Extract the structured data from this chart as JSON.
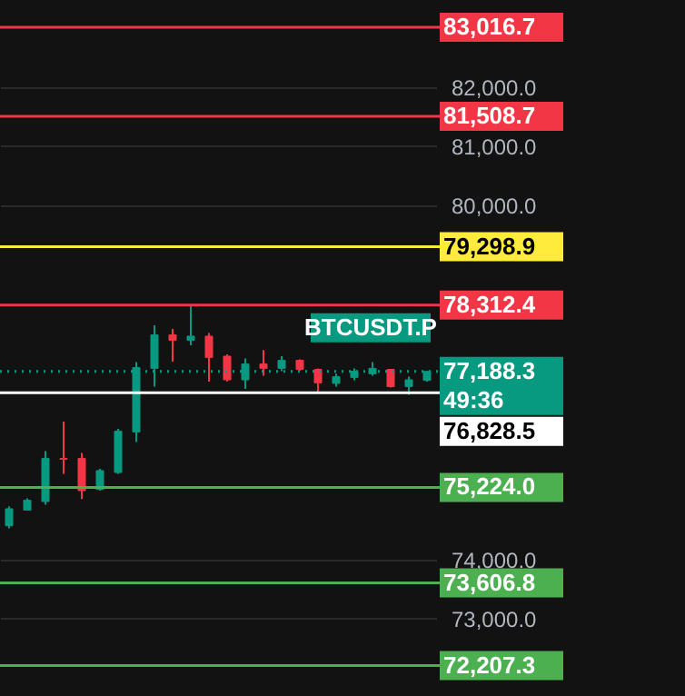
{
  "chart_data": {
    "type": "candlestick",
    "categories": [
      null,
      null,
      null,
      null,
      null,
      null,
      null,
      null,
      null,
      null,
      null,
      null,
      null,
      null,
      null,
      null,
      null,
      null,
      null,
      null,
      null,
      null,
      null,
      null
    ],
    "ohlc": [
      [
        74575,
        74902,
        74532,
        74862
      ],
      [
        74840,
        75037,
        74831,
        75006
      ],
      [
        74985,
        75837,
        74932,
        75714
      ],
      [
        75714,
        76338,
        75455,
        75700
      ],
      [
        75714,
        75806,
        75025,
        75169
      ],
      [
        75191,
        75538,
        75169,
        75508
      ],
      [
        75477,
        76215,
        75455,
        76175
      ],
      [
        76163,
        77345,
        75991,
        77252
      ],
      [
        77240,
        77969,
        76932,
        77806
      ],
      [
        77806,
        77908,
        77354,
        77714
      ],
      [
        77714,
        78298,
        77631,
        77785
      ],
      [
        77785,
        77837,
        77015,
        77425
      ],
      [
        77446,
        77477,
        77015,
        77046
      ],
      [
        77046,
        77406,
        76892,
        77314
      ],
      [
        77314,
        77548,
        77117,
        77240
      ],
      [
        77240,
        77446,
        77191,
        77375
      ],
      [
        77375,
        77394,
        77200,
        77222
      ],
      [
        77222,
        77240,
        76840,
        76994
      ],
      [
        76985,
        77148,
        76932,
        77098
      ],
      [
        77086,
        77240,
        77037,
        77191
      ],
      [
        77148,
        77345,
        77117,
        77240
      ],
      [
        77222,
        77222,
        76914,
        76932
      ],
      [
        76932,
        77098,
        76791,
        77046
      ],
      [
        77037,
        77191,
        77015,
        77188
      ]
    ],
    "ylim": [
      71692,
      83477
    ],
    "yticks": [
      {
        "value": 73000,
        "label": "73,000.0"
      },
      {
        "value": 74000,
        "label": "74,000.0"
      },
      {
        "value": 80000,
        "label": "80,000.0"
      },
      {
        "value": 81000,
        "label": "81,000.0"
      },
      {
        "value": 82000,
        "label": "82,000.0"
      }
    ],
    "tick_labels": "y",
    "grid": "y",
    "ref_lines": [
      {
        "axis": "y",
        "value": 83016.7,
        "label": "83,016.7",
        "color": "#f23645"
      },
      {
        "axis": "y",
        "value": 81508.7,
        "label": "81,508.7",
        "color": "#f23645"
      },
      {
        "axis": "y",
        "value": 79298.9,
        "label": "79,298.9",
        "color": "#ffeb3b"
      },
      {
        "axis": "y",
        "value": 78312.4,
        "label": "78,312.4",
        "color": "#f23645"
      },
      {
        "axis": "y",
        "value": 77188.3,
        "label": "77,188.3",
        "color": "#089981",
        "line_style": "dotted"
      },
      {
        "axis": "y",
        "value": 76828.5,
        "label": "76,828.5",
        "color": "#ffffff"
      },
      {
        "axis": "y",
        "value": 75224.0,
        "label": "75,224.0",
        "color": "#4caf50"
      },
      {
        "axis": "y",
        "value": 73606.8,
        "label": "73,606.8",
        "color": "#4caf50"
      },
      {
        "axis": "y",
        "value": 72207.3,
        "label": "72,207.3",
        "color": "#4caf50"
      }
    ],
    "annotations": [
      "BTCUSDT.P",
      "49:36"
    ]
  }
}
